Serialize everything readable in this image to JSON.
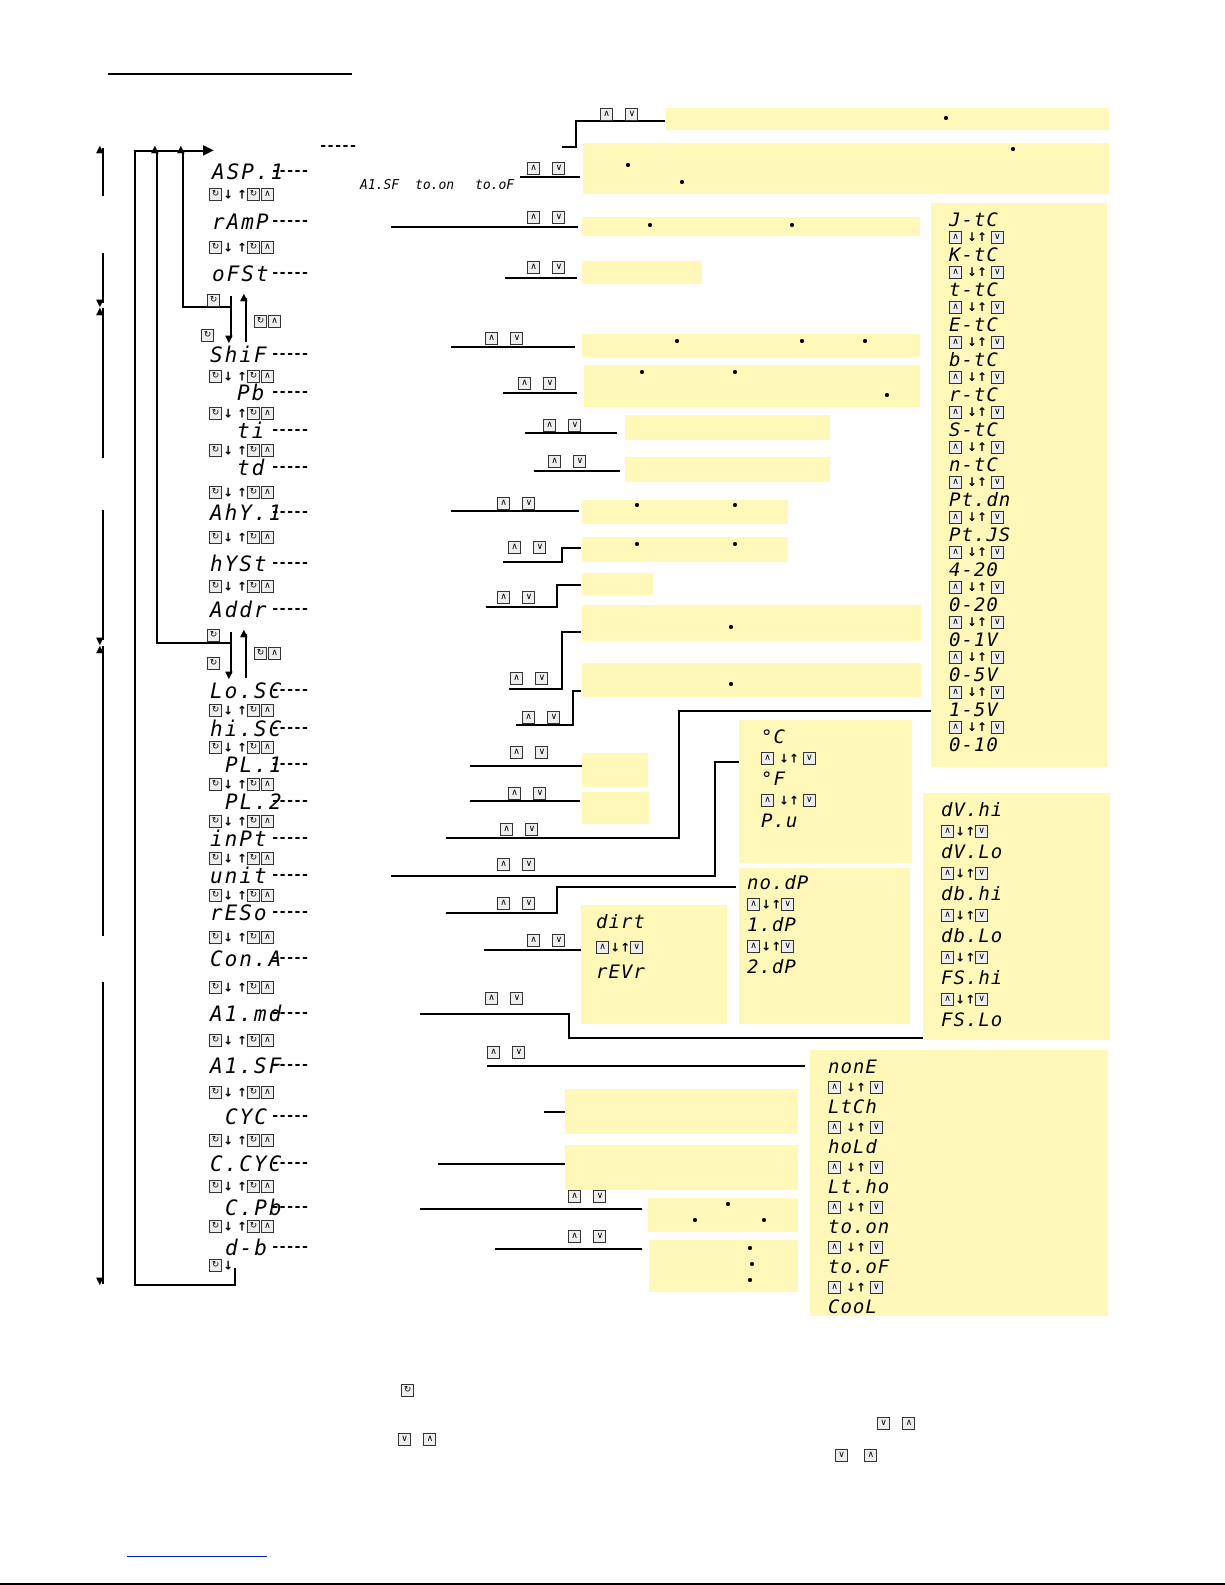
{
  "parameters": [
    {
      "code": "ASP.1"
    },
    {
      "code": "rAmP"
    },
    {
      "code": "oFSt"
    },
    {
      "code": "ShiF"
    },
    {
      "code": "Pb"
    },
    {
      "code": "ti"
    },
    {
      "code": "td"
    },
    {
      "code": "AhY.1"
    },
    {
      "code": "hYSt"
    },
    {
      "code": "Addr"
    },
    {
      "code": "Lo.SC"
    },
    {
      "code": "hi.SC"
    },
    {
      "code": "PL.1"
    },
    {
      "code": "PL.2"
    },
    {
      "code": "inPt"
    },
    {
      "code": "unit"
    },
    {
      "code": "rESo"
    },
    {
      "code": "Con.A"
    },
    {
      "code": "A1.md"
    },
    {
      "code": "A1.SF"
    },
    {
      "code": "CYC"
    },
    {
      "code": "C.CYC"
    },
    {
      "code": "C.Pb"
    },
    {
      "code": "d-b"
    }
  ],
  "keys": {
    "set": "↻",
    "up": "∧",
    "down": "∨",
    "arrow_down": "↓",
    "arrow_up": "↑"
  },
  "asp_note": {
    "a": "A1.SF",
    "b": "to.on",
    "c": "to.oF"
  },
  "dash": "-----",
  "input_options": [
    "J-tC",
    "K-tC",
    "t-tC",
    "E-tC",
    "b-tC",
    "r-tC",
    "S-tC",
    "n-tC",
    "Pt.dn",
    "Pt.JS",
    "4-20",
    "0-20",
    "0-1V",
    "0-5V",
    "1-5V",
    "0-10"
  ],
  "unit_options": [
    "°C",
    "°F",
    "P.u"
  ],
  "reso_options": [
    "no.dP",
    "1.dP",
    "2.dP"
  ],
  "cona_options": [
    "dirt",
    "rEVr"
  ],
  "a1md_options": [
    "dV.hi",
    "dV.Lo",
    "db.hi",
    "db.Lo",
    "FS.hi",
    "FS.Lo"
  ],
  "a1sf_options": [
    "nonE",
    "LtCh",
    "hoLd",
    "Lt.ho",
    "to.on",
    "to.oF",
    "CooL"
  ]
}
